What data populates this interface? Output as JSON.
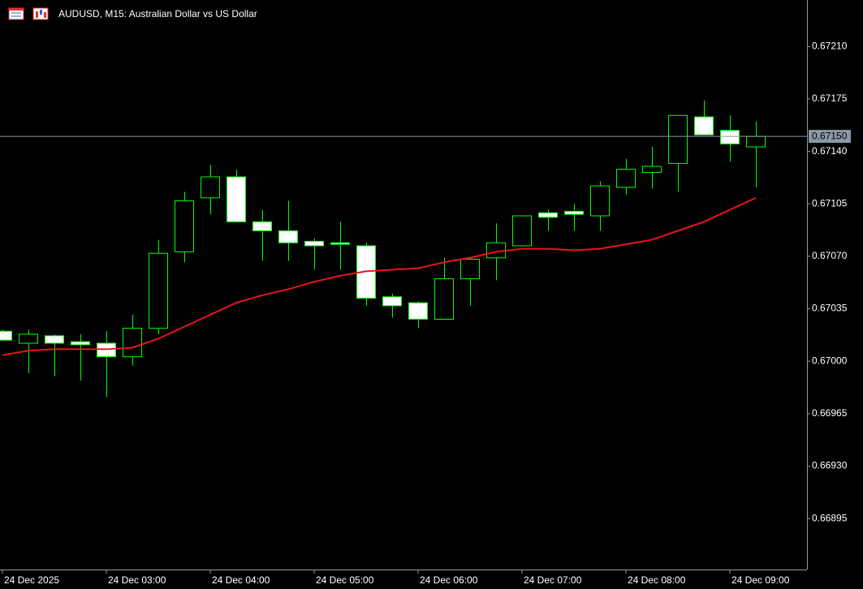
{
  "chart_data": {
    "type": "candlestick",
    "title": "AUDUSD, M15:  Australian Dollar vs US Dollar",
    "categories": [
      "24 Dec 2025",
      null,
      null,
      null,
      "24 Dec 03:00",
      null,
      null,
      null,
      "24 Dec 04:00",
      null,
      null,
      null,
      "24 Dec 05:00",
      null,
      null,
      null,
      "24 Dec 06:00",
      null,
      null,
      null,
      "24 Dec 07:00",
      null,
      null,
      null,
      "24 Dec 08:00",
      null,
      null,
      null,
      "24 Dec 09:00",
      null
    ],
    "open": [
      0.6702,
      0.67012,
      0.67017,
      0.67013,
      0.67012,
      0.67003,
      0.67022,
      0.67073,
      0.67109,
      0.67123,
      0.67093,
      0.67087,
      0.6708,
      0.67079,
      0.67077,
      0.67043,
      0.67039,
      0.67028,
      0.67055,
      0.67069,
      0.67077,
      0.67099,
      0.671,
      0.67097,
      0.67116,
      0.67126,
      0.67132,
      0.67163,
      0.67154,
      0.67143
    ],
    "high": [
      0.67021,
      0.67021,
      0.67018,
      0.67018,
      0.6702,
      0.67031,
      0.67081,
      0.67113,
      0.67131,
      0.67128,
      0.67101,
      0.67107,
      0.67082,
      0.67093,
      0.67079,
      0.67045,
      0.6704,
      0.67069,
      0.67069,
      0.67092,
      0.67097,
      0.67101,
      0.67105,
      0.6712,
      0.67135,
      0.67143,
      0.67164,
      0.67174,
      0.67164,
      0.6716
    ],
    "low": [
      0.67014,
      0.66992,
      0.6699,
      0.66987,
      0.66976,
      0.66997,
      0.67018,
      0.67066,
      0.67098,
      0.67093,
      0.67067,
      0.67067,
      0.67061,
      0.67061,
      0.67037,
      0.67029,
      0.67022,
      0.67028,
      0.67037,
      0.67054,
      0.67077,
      0.67087,
      0.67087,
      0.67087,
      0.67111,
      0.67115,
      0.67113,
      0.67151,
      0.67133,
      0.67116
    ],
    "close": [
      0.67014,
      0.67018,
      0.67012,
      0.67011,
      0.67003,
      0.67022,
      0.67072,
      0.67107,
      0.67123,
      0.67093,
      0.67087,
      0.67079,
      0.67077,
      0.67078,
      0.67042,
      0.67037,
      0.67028,
      0.67055,
      0.67068,
      0.67079,
      0.67097,
      0.67096,
      0.67098,
      0.67117,
      0.67128,
      0.6713,
      0.67164,
      0.67151,
      0.67145,
      0.6715
    ],
    "up_color": "#000000",
    "down_color": "#ffffff",
    "wick_color": "#00ff00",
    "moving_average": {
      "color": "#e8151b",
      "values": [
        0.67004,
        0.67007,
        0.67008,
        0.67008,
        0.67008,
        0.67009,
        0.67015,
        0.67023,
        0.67031,
        0.67039,
        0.67044,
        0.67048,
        0.67053,
        0.67057,
        0.6706,
        0.67061,
        0.67062,
        0.67066,
        0.67069,
        0.67073,
        0.67075,
        0.67075,
        0.67074,
        0.67075,
        0.67078,
        0.67081,
        0.67087,
        0.67093,
        0.67101,
        0.67109
      ]
    },
    "current_price": {
      "value": 0.6715,
      "label": "0.67150"
    },
    "ylim": [
      0.66861,
      0.67241
    ],
    "yticks": [
      {
        "value": 0.66895,
        "label": "0.66895"
      },
      {
        "value": 0.6693,
        "label": "0.66930"
      },
      {
        "value": 0.66965,
        "label": "0.66965"
      },
      {
        "value": 0.67,
        "label": "0.67000"
      },
      {
        "value": 0.67035,
        "label": "0.67035"
      },
      {
        "value": 0.6707,
        "label": "0.67070"
      },
      {
        "value": 0.67105,
        "label": "0.67105"
      },
      {
        "value": 0.6714,
        "label": "0.67140"
      },
      {
        "value": 0.67175,
        "label": "0.67175"
      },
      {
        "value": 0.6721,
        "label": "0.67210"
      }
    ],
    "grid": false
  }
}
